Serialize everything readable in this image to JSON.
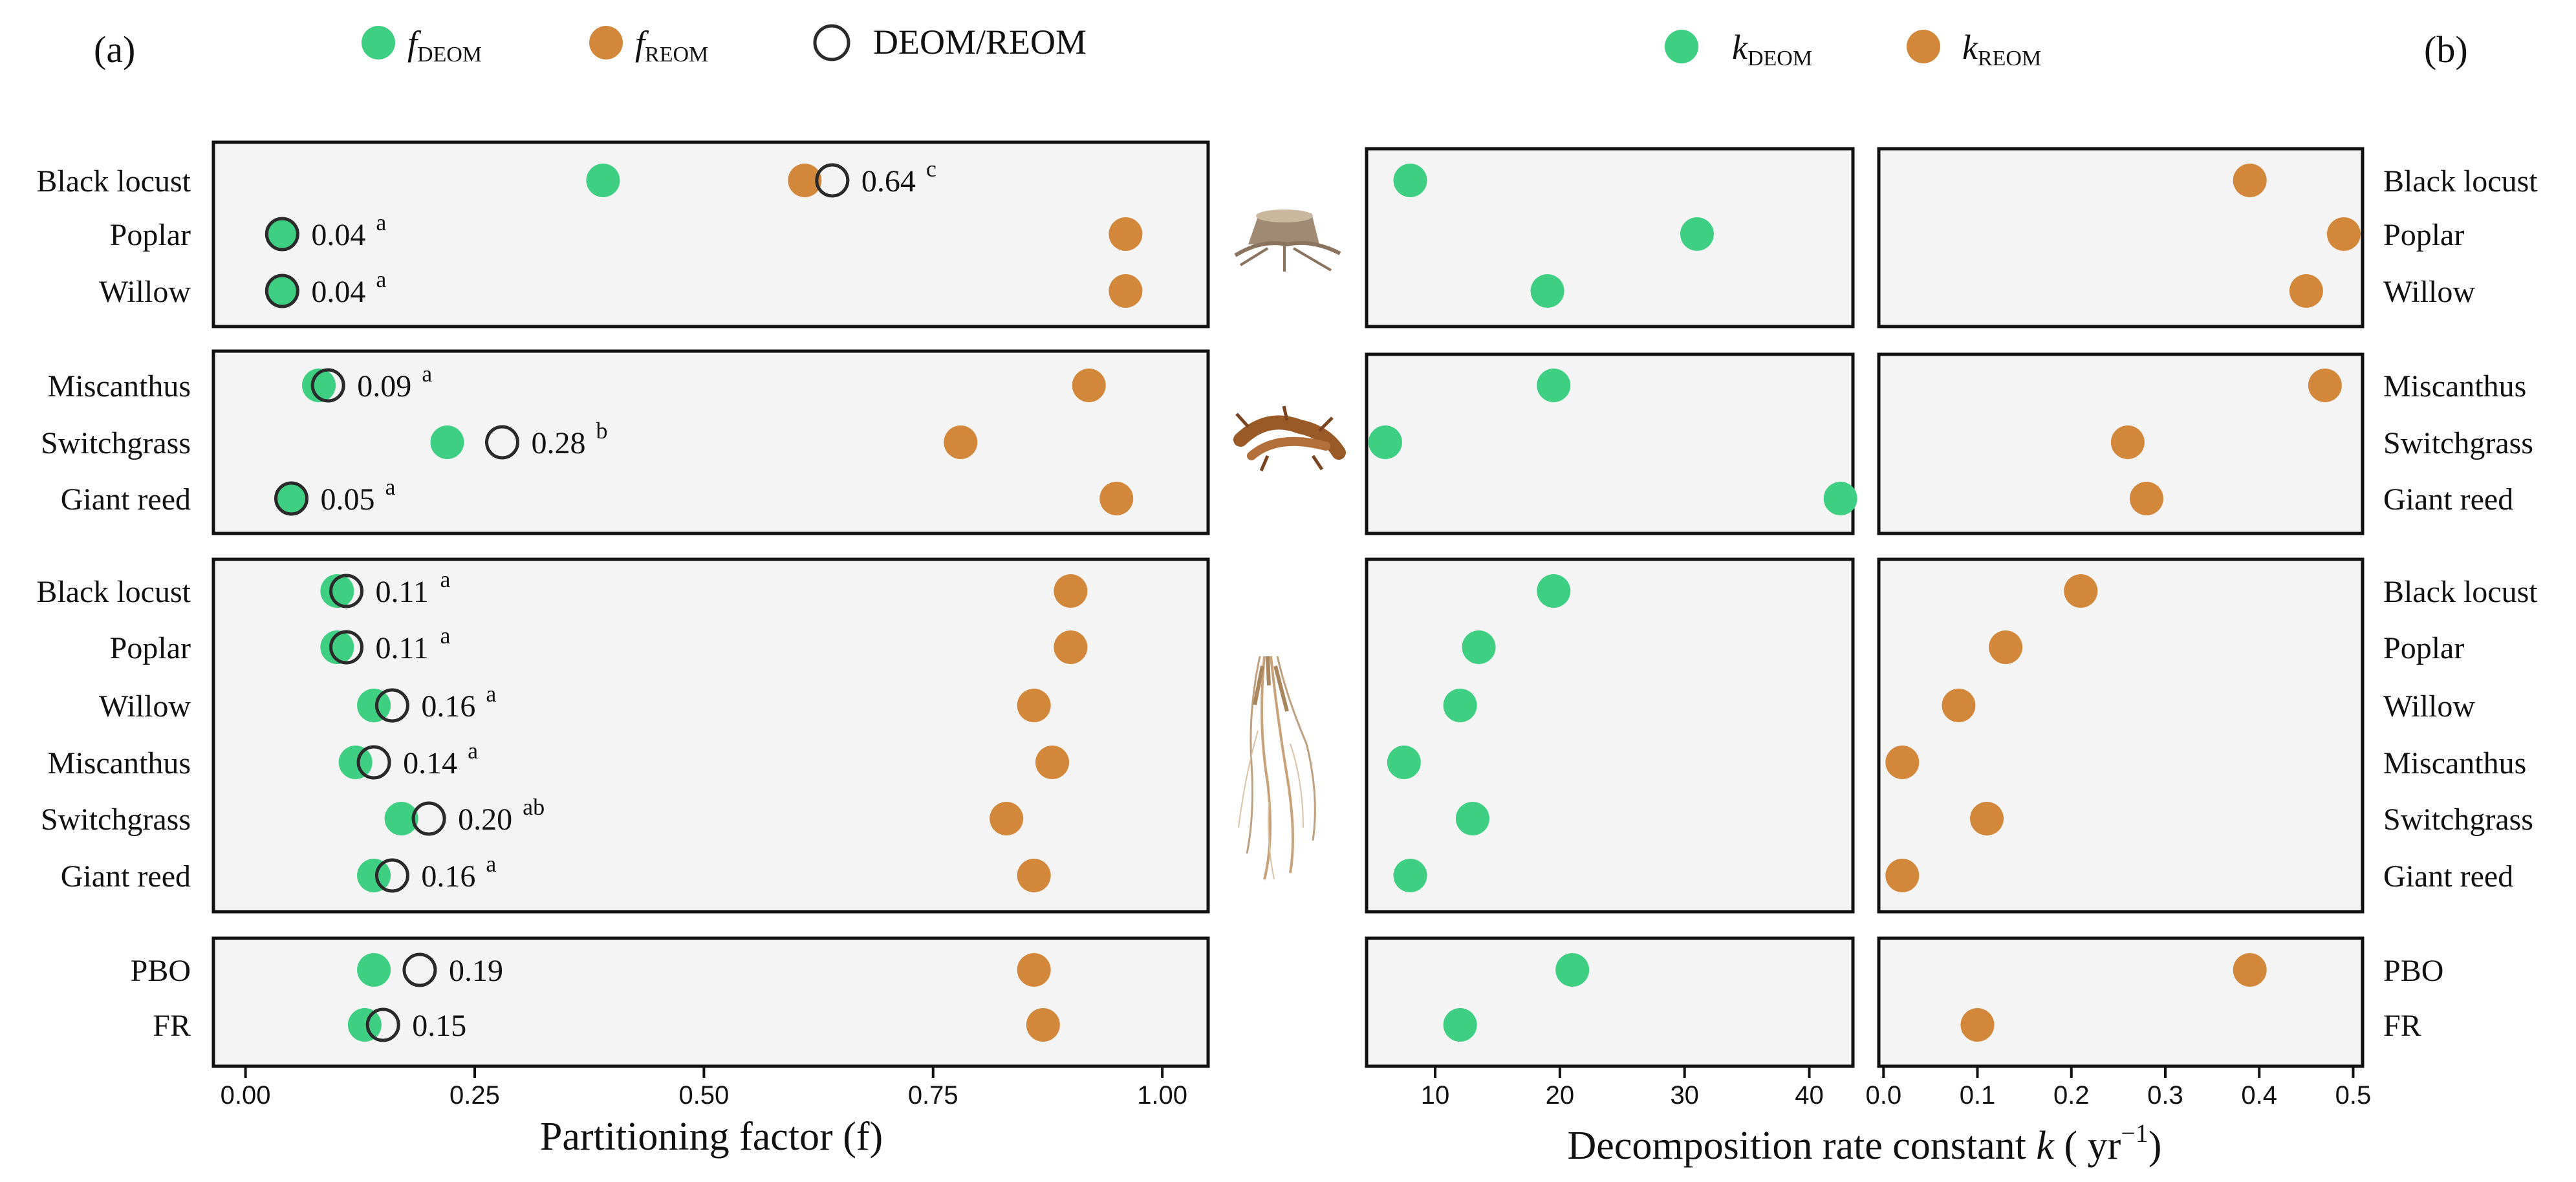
{
  "panel_labels": {
    "a": "(a)",
    "b": "(b)"
  },
  "legend_a": {
    "f_deom": {
      "main": "f",
      "sub": "DEOM"
    },
    "f_reom": {
      "main": "f",
      "sub": "REOM"
    },
    "ratio": "DEOM/REOM"
  },
  "legend_b": {
    "k_deom": {
      "main": "k",
      "sub": "DEOM"
    },
    "k_reom": {
      "main": "k",
      "sub": "REOM"
    }
  },
  "colors": {
    "deom": "#3ecf82",
    "reom": "#d2873a",
    "ring": "#2a2a2a"
  },
  "icons": [
    "tree-stump-icon",
    "rhizome-icon",
    "fine-roots-icon"
  ],
  "chart_data": [
    {
      "type": "scatter",
      "name": "partitioning-factor",
      "xlabel": "Partitioning factor (f)",
      "xlim": [
        -0.035,
        1.05
      ],
      "xticks": [
        "0.00",
        "0.25",
        "0.50",
        "0.75",
        "1.00"
      ],
      "groups": [
        {
          "name": "stump",
          "rows": [
            {
              "label": "Black locust",
              "f_deom": 0.39,
              "f_reom": 0.61,
              "ratio": 0.64,
              "ratio_label": "0.64",
              "sig": "c"
            },
            {
              "label": "Poplar",
              "f_deom": 0.04,
              "f_reom": 0.96,
              "ratio": 0.04,
              "ratio_label": "0.04",
              "sig": "a"
            },
            {
              "label": "Willow",
              "f_deom": 0.04,
              "f_reom": 0.96,
              "ratio": 0.04,
              "ratio_label": "0.04",
              "sig": "a"
            }
          ]
        },
        {
          "name": "rhizome",
          "rows": [
            {
              "label": "Miscanthus",
              "f_deom": 0.08,
              "f_reom": 0.92,
              "ratio": 0.09,
              "ratio_label": "0.09",
              "sig": "a"
            },
            {
              "label": "Switchgrass",
              "f_deom": 0.22,
              "f_reom": 0.78,
              "ratio": 0.28,
              "ratio_label": "0.28",
              "sig": "b"
            },
            {
              "label": "Giant reed",
              "f_deom": 0.05,
              "f_reom": 0.95,
              "ratio": 0.05,
              "ratio_label": "0.05",
              "sig": "a"
            }
          ]
        },
        {
          "name": "fine-roots",
          "rows": [
            {
              "label": "Black locust",
              "f_deom": 0.1,
              "f_reom": 0.9,
              "ratio": 0.11,
              "ratio_label": "0.11",
              "sig": "a"
            },
            {
              "label": "Poplar",
              "f_deom": 0.1,
              "f_reom": 0.9,
              "ratio": 0.11,
              "ratio_label": "0.11",
              "sig": "a"
            },
            {
              "label": "Willow",
              "f_deom": 0.14,
              "f_reom": 0.86,
              "ratio": 0.16,
              "ratio_label": "0.16",
              "sig": "a"
            },
            {
              "label": "Miscanthus",
              "f_deom": 0.12,
              "f_reom": 0.88,
              "ratio": 0.14,
              "ratio_label": "0.14",
              "sig": "a"
            },
            {
              "label": "Switchgrass",
              "f_deom": 0.17,
              "f_reom": 0.83,
              "ratio": 0.2,
              "ratio_label": "0.20",
              "sig": "ab"
            },
            {
              "label": "Giant reed",
              "f_deom": 0.14,
              "f_reom": 0.86,
              "ratio": 0.16,
              "ratio_label": "0.16",
              "sig": "a"
            }
          ]
        },
        {
          "name": "summary",
          "rows": [
            {
              "label": "PBO",
              "f_deom": 0.14,
              "f_reom": 0.86,
              "ratio": 0.19,
              "ratio_label": "0.19",
              "sig": ""
            },
            {
              "label": "FR",
              "f_deom": 0.13,
              "f_reom": 0.87,
              "ratio": 0.15,
              "ratio_label": "0.15",
              "sig": ""
            }
          ]
        }
      ]
    },
    {
      "type": "scatter",
      "name": "decomposition-rate",
      "xlabel_prefix": "Decomposition rate constant ",
      "xlabel_k": "k",
      "xlabel_unit": " ( yr",
      "xlabel_exp": "−1",
      "xlabel_close": ")",
      "deom": {
        "xlim": [
          4.5,
          43.5
        ],
        "xticks": [
          "10",
          "20",
          "30",
          "40"
        ],
        "groups": [
          [
            8.0,
            31.0,
            19.0
          ],
          [
            19.5,
            6.0,
            42.5
          ],
          [
            19.5,
            13.5,
            12.0,
            7.5,
            13.0,
            8.0
          ],
          [
            21.0,
            12.0
          ]
        ]
      },
      "reom": {
        "xlim": [
          -0.005,
          0.51
        ],
        "xticks": [
          "0.0",
          "0.1",
          "0.2",
          "0.3",
          "0.4",
          "0.5"
        ],
        "groups": [
          [
            0.39,
            0.49,
            0.45
          ],
          [
            0.47,
            0.26,
            0.28
          ],
          [
            0.21,
            0.13,
            0.08,
            0.02,
            0.11,
            0.02
          ],
          [
            0.39,
            0.1
          ]
        ]
      },
      "row_labels": [
        [
          "Black locust",
          "Poplar",
          "Willow"
        ],
        [
          "Miscanthus",
          "Switchgrass",
          "Giant reed"
        ],
        [
          "Black locust",
          "Poplar",
          "Willow",
          "Miscanthus",
          "Switchgrass",
          "Giant reed"
        ],
        [
          "PBO",
          "FR"
        ]
      ]
    }
  ]
}
